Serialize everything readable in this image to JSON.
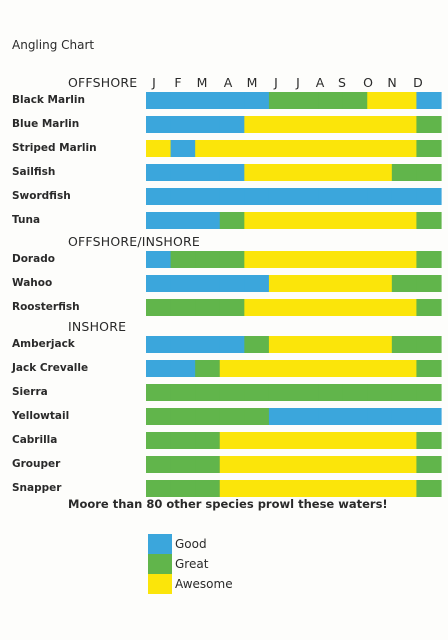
{
  "title": "Angling Chart",
  "sections": [
    "OFFSHORE",
    "OFFSHORE/INSHORE",
    "INSHORE"
  ],
  "footer": "Moore than 80 other species prowl these waters!",
  "legend": [
    {
      "label": "Good",
      "color": "#3ba6dc"
    },
    {
      "label": "Great",
      "color": "#61b54b"
    },
    {
      "label": "Awesome",
      "color": "#fbe50a"
    }
  ],
  "chart_data": {
    "type": "bar",
    "title": "Angling Chart",
    "months": [
      "J",
      "F",
      "M",
      "A",
      "M",
      "J",
      "J",
      "A",
      "S",
      "O",
      "N",
      "D"
    ],
    "rating_levels": [
      "Good",
      "Great",
      "Awesome"
    ],
    "colors": {
      "Good": "#3ba6dc",
      "Great": "#61b54b",
      "Awesome": "#fbe50a"
    },
    "species": [
      {
        "name": "Black Marlin",
        "section": "OFFSHORE",
        "ratings": [
          "Good",
          "Good",
          "Good",
          "Good",
          "Good",
          "Great",
          "Great",
          "Great",
          "Great",
          "Awesome",
          "Awesome",
          "Good"
        ]
      },
      {
        "name": "Blue Marlin",
        "section": "OFFSHORE",
        "ratings": [
          "Good",
          "Good",
          "Good",
          "Good",
          "Awesome",
          "Awesome",
          "Awesome",
          "Awesome",
          "Awesome",
          "Awesome",
          "Awesome",
          "Great"
        ]
      },
      {
        "name": "Striped Marlin",
        "section": "OFFSHORE",
        "ratings": [
          "Awesome",
          "Good",
          "Awesome",
          "Awesome",
          "Awesome",
          "Awesome",
          "Awesome",
          "Awesome",
          "Awesome",
          "Awesome",
          "Awesome",
          "Great"
        ]
      },
      {
        "name": "Sailfish",
        "section": "OFFSHORE",
        "ratings": [
          "Good",
          "Good",
          "Good",
          "Good",
          "Awesome",
          "Awesome",
          "Awesome",
          "Awesome",
          "Awesome",
          "Awesome",
          "Great",
          "Great"
        ]
      },
      {
        "name": "Swordfish",
        "section": "OFFSHORE",
        "ratings": [
          "Good",
          "Good",
          "Good",
          "Good",
          "Good",
          "Good",
          "Good",
          "Good",
          "Good",
          "Good",
          "Good",
          "Good"
        ]
      },
      {
        "name": "Tuna",
        "section": "OFFSHORE",
        "ratings": [
          "Good",
          "Good",
          "Good",
          "Great",
          "Awesome",
          "Awesome",
          "Awesome",
          "Awesome",
          "Awesome",
          "Awesome",
          "Awesome",
          "Great"
        ]
      },
      {
        "name": "Dorado",
        "section": "OFFSHORE/INSHORE",
        "ratings": [
          "Good",
          "Great",
          "Great",
          "Great",
          "Awesome",
          "Awesome",
          "Awesome",
          "Awesome",
          "Awesome",
          "Awesome",
          "Awesome",
          "Great"
        ]
      },
      {
        "name": "Wahoo",
        "section": "OFFSHORE/INSHORE",
        "ratings": [
          "Good",
          "Good",
          "Good",
          "Good",
          "Good",
          "Awesome",
          "Awesome",
          "Awesome",
          "Awesome",
          "Awesome",
          "Great",
          "Great"
        ]
      },
      {
        "name": "Roosterfish",
        "section": "OFFSHORE/INSHORE",
        "ratings": [
          "Great",
          "Great",
          "Great",
          "Great",
          "Awesome",
          "Awesome",
          "Awesome",
          "Awesome",
          "Awesome",
          "Awesome",
          "Awesome",
          "Great"
        ]
      },
      {
        "name": "Amberjack",
        "section": "INSHORE",
        "ratings": [
          "Good",
          "Good",
          "Good",
          "Good",
          "Great",
          "Awesome",
          "Awesome",
          "Awesome",
          "Awesome",
          "Awesome",
          "Great",
          "Great"
        ]
      },
      {
        "name": "Jack Crevalle",
        "section": "INSHORE",
        "ratings": [
          "Good",
          "Good",
          "Great",
          "Awesome",
          "Awesome",
          "Awesome",
          "Awesome",
          "Awesome",
          "Awesome",
          "Awesome",
          "Awesome",
          "Great"
        ]
      },
      {
        "name": "Sierra",
        "section": "INSHORE",
        "ratings": [
          "Great",
          "Great",
          "Great",
          "Great",
          "Great",
          "Great",
          "Great",
          "Great",
          "Great",
          "Great",
          "Great",
          "Great"
        ]
      },
      {
        "name": "Yellowtail",
        "section": "INSHORE",
        "ratings": [
          "Great",
          "Great",
          "Great",
          "Great",
          "Great",
          "Good",
          "Good",
          "Good",
          "Good",
          "Good",
          "Good",
          "Good"
        ]
      },
      {
        "name": "Cabrilla",
        "section": "INSHORE",
        "ratings": [
          "Great",
          "Great",
          "Great",
          "Awesome",
          "Awesome",
          "Awesome",
          "Awesome",
          "Awesome",
          "Awesome",
          "Awesome",
          "Awesome",
          "Great"
        ]
      },
      {
        "name": "Grouper",
        "section": "INSHORE",
        "ratings": [
          "Great",
          "Great",
          "Great",
          "Awesome",
          "Awesome",
          "Awesome",
          "Awesome",
          "Awesome",
          "Awesome",
          "Awesome",
          "Awesome",
          "Great"
        ]
      },
      {
        "name": "Snapper",
        "section": "INSHORE",
        "ratings": [
          "Great",
          "Great",
          "Great",
          "Awesome",
          "Awesome",
          "Awesome",
          "Awesome",
          "Awesome",
          "Awesome",
          "Awesome",
          "Awesome",
          "Great"
        ]
      }
    ]
  }
}
